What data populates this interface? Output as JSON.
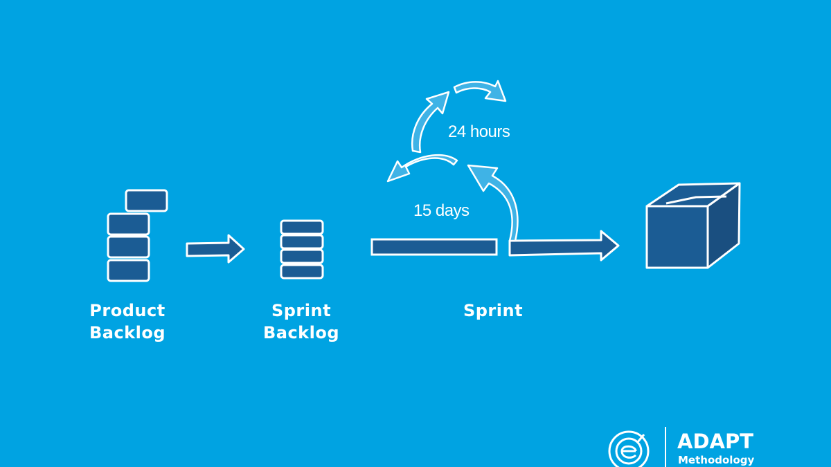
{
  "labels": {
    "product_backlog": [
      "Product",
      "Backlog"
    ],
    "sprint_backlog": [
      "Sprint",
      "Backlog"
    ],
    "sprint": "Sprint",
    "daily_cycle": "24 hours",
    "sprint_length": "15 days"
  },
  "brand": {
    "name": "ADAPT",
    "tagline": "Methodology",
    "logo_icon": "e-circle-logo-icon"
  },
  "colors": {
    "background": "#00a3e2",
    "block_fill": "#1b5c94",
    "block_fill_dark": "#1a4f80",
    "cycle_arrow_fill": "#3fb3e6",
    "outline": "#ffffff"
  },
  "icons": [
    "product-backlog-stack-icon",
    "sprint-backlog-stack-icon",
    "arrow-right-icon",
    "sprint-bar-icon",
    "cycle-arrow-icon",
    "increment-box-icon"
  ]
}
